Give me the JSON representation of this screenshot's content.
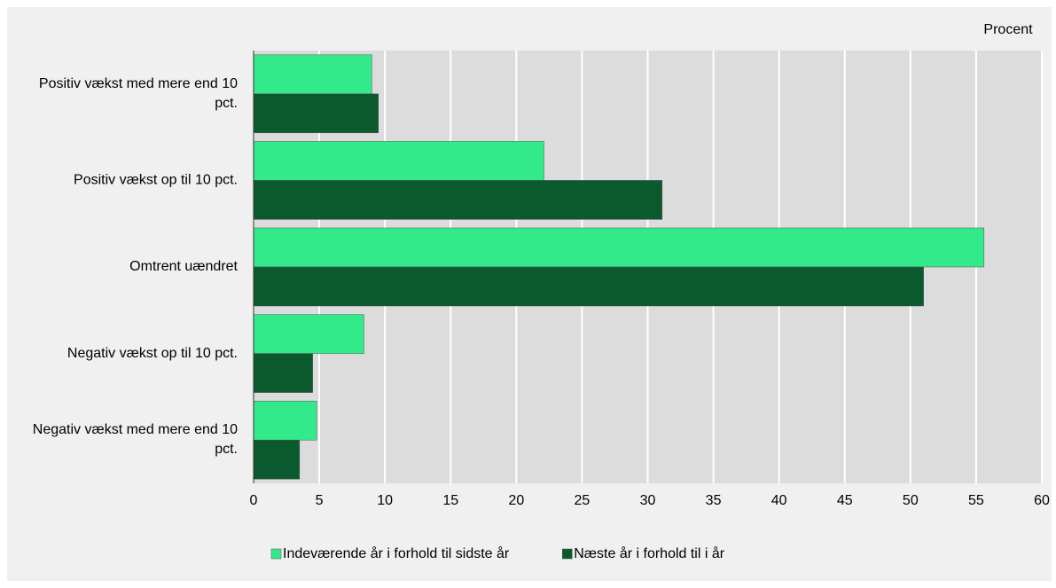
{
  "chart_data": {
    "type": "hbar",
    "xlabel": "Procent",
    "categories": [
      "Positiv vækst med mere end 10 pct.",
      "Positiv vækst op til 10 pct.",
      "Omtrent uændret",
      "Negativ vækst op til 10 pct.",
      "Negativ vækst med mere end 10 pct."
    ],
    "series": [
      {
        "name": "Indeværende år i forhold til sidste år",
        "color": "#33ea8a",
        "values": [
          9.0,
          22.1,
          55.6,
          8.4,
          4.8
        ]
      },
      {
        "name": "Næste år i forhold til i år",
        "color": "#0a5a2e",
        "values": [
          9.5,
          31.1,
          51.0,
          4.5,
          3.5
        ]
      }
    ],
    "xlim": [
      0,
      60
    ],
    "xticks": [
      0,
      5,
      10,
      15,
      20,
      25,
      30,
      35,
      40,
      45,
      50,
      55,
      60
    ],
    "grid": true
  }
}
